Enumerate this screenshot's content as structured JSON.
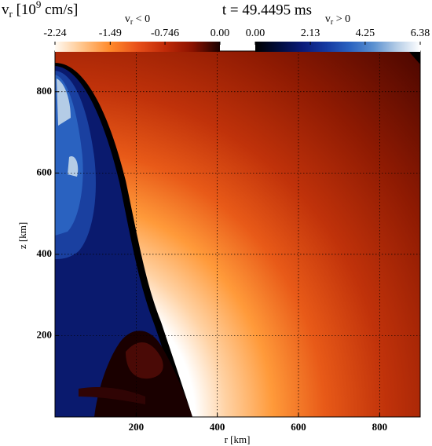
{
  "chart_data": {
    "type": "heatmap",
    "title": {
      "base": "v",
      "sub": "r",
      "mid": " [10",
      "sup": "9",
      "end": " cm/s]"
    },
    "subtitle": "t = 49.4495 ms",
    "xlabel": "r [km]",
    "ylabel": "z [km]",
    "xlim": [
      0,
      900
    ],
    "ylim": [
      0,
      900
    ],
    "xticks": [
      200,
      400,
      600,
      800
    ],
    "yticks": [
      200,
      400,
      600,
      800
    ],
    "grid": true,
    "colorbars": [
      {
        "label": {
          "base": "v",
          "sub": "r",
          "end": " < 0"
        },
        "range": [
          -2.24,
          0
        ],
        "ticks": [
          -2.24,
          -1.49,
          -0.746,
          {
            "value": 0,
            "label": "0.00"
          }
        ],
        "colors": [
          "#fffaf2",
          "#ffc48a",
          "#ff8a2a",
          "#e8501a",
          "#c02a08",
          "#8a1200",
          "#1a0000"
        ]
      },
      {
        "label": {
          "base": "v",
          "sub": "r",
          "end": " > 0"
        },
        "range": [
          0,
          6.38
        ],
        "ticks": [
          {
            "value": 0,
            "label": "0.00"
          },
          2.13,
          4.25,
          6.38
        ],
        "colors": [
          "#000000",
          "#000c3c",
          "#0a1a78",
          "#1438a0",
          "#2a62c0",
          "#5a90d0",
          "#b4cce6",
          "#ffffff"
        ]
      }
    ]
  }
}
